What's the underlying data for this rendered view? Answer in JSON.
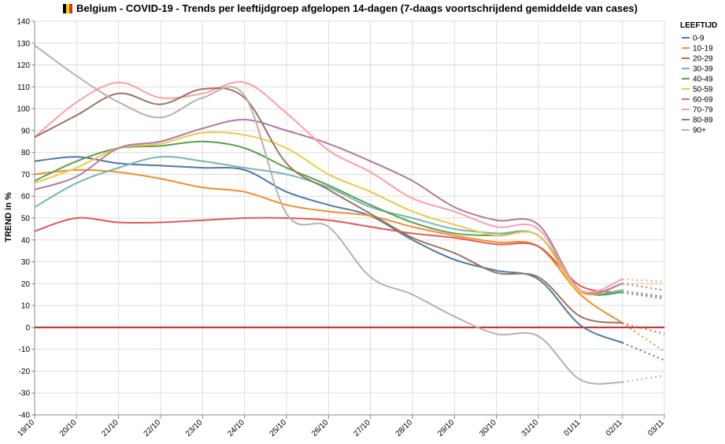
{
  "chart_data": {
    "type": "line",
    "title": "Belgium - COVID-19 - Trends per leeftijdgroep afgelopen 14-dagen (7-daags voortschrijdend gemiddelde van cases)",
    "title_icon": "belgium-flag-icon",
    "xlabel": "",
    "ylabel": "TREND in %",
    "ylim": [
      -40,
      140
    ],
    "ytick_step": 10,
    "grid": true,
    "legend_title": "LEEFTIJD",
    "legend_position": "top-right",
    "reference_line": {
      "y": 0,
      "color": "#cc2222"
    },
    "x": [
      "19/10",
      "20/10",
      "21/10",
      "22/10",
      "23/10",
      "24/10",
      "25/10",
      "26/10",
      "27/10",
      "28/10",
      "29/10",
      "30/10",
      "31/10",
      "01/11",
      "02/11",
      "03/11"
    ],
    "projection_from_index": 14,
    "series": [
      {
        "name": "0-9",
        "color": "#4e79a7",
        "values": [
          76,
          78,
          75,
          74,
          73,
          72,
          62,
          56,
          51,
          40,
          31,
          26,
          22,
          1,
          -7,
          -15
        ]
      },
      {
        "name": "10-19",
        "color": "#f28e2b",
        "values": [
          70,
          72,
          71,
          68,
          64,
          62,
          56,
          53,
          51,
          46,
          42,
          39,
          37,
          15,
          2,
          -11
        ]
      },
      {
        "name": "20-29",
        "color": "#e15759",
        "values": [
          44,
          50,
          48,
          48,
          49,
          50,
          50,
          49,
          46,
          43,
          41,
          38,
          37,
          19,
          16,
          13
        ]
      },
      {
        "name": "30-39",
        "color": "#76b7b2",
        "values": [
          55,
          66,
          73,
          78,
          76,
          73,
          70,
          64,
          55,
          50,
          45,
          43,
          42,
          17,
          17,
          14
        ]
      },
      {
        "name": "40-49",
        "color": "#59a14f",
        "values": [
          67,
          76,
          82,
          83,
          85,
          82,
          73,
          65,
          56,
          48,
          43,
          42,
          42,
          17,
          16,
          14
        ]
      },
      {
        "name": "50-59",
        "color": "#edc948",
        "values": [
          66,
          73,
          82,
          84,
          89,
          88,
          82,
          70,
          62,
          53,
          47,
          42,
          42,
          16,
          20,
          20
        ]
      },
      {
        "name": "60-69",
        "color": "#b07aa1",
        "values": [
          63,
          69,
          82,
          85,
          91,
          95,
          90,
          84,
          76,
          67,
          55,
          49,
          47,
          17,
          20,
          17
        ]
      },
      {
        "name": "70-79",
        "color": "#ff9da7",
        "values": [
          87,
          103,
          112,
          105,
          107,
          112,
          98,
          81,
          71,
          59,
          53,
          46,
          45,
          17,
          22,
          21
        ]
      },
      {
        "name": "80-89",
        "color": "#9c755f",
        "values": [
          87,
          97,
          107,
          102,
          109,
          105,
          75,
          63,
          52,
          41,
          34,
          25,
          23,
          5,
          2,
          -3
        ]
      },
      {
        "name": "90+",
        "color": "#bab0ac",
        "values": [
          129,
          115,
          103,
          96,
          105,
          106,
          52,
          46,
          23,
          15,
          5,
          -3,
          -4,
          -24,
          -25,
          -22
        ]
      }
    ]
  }
}
